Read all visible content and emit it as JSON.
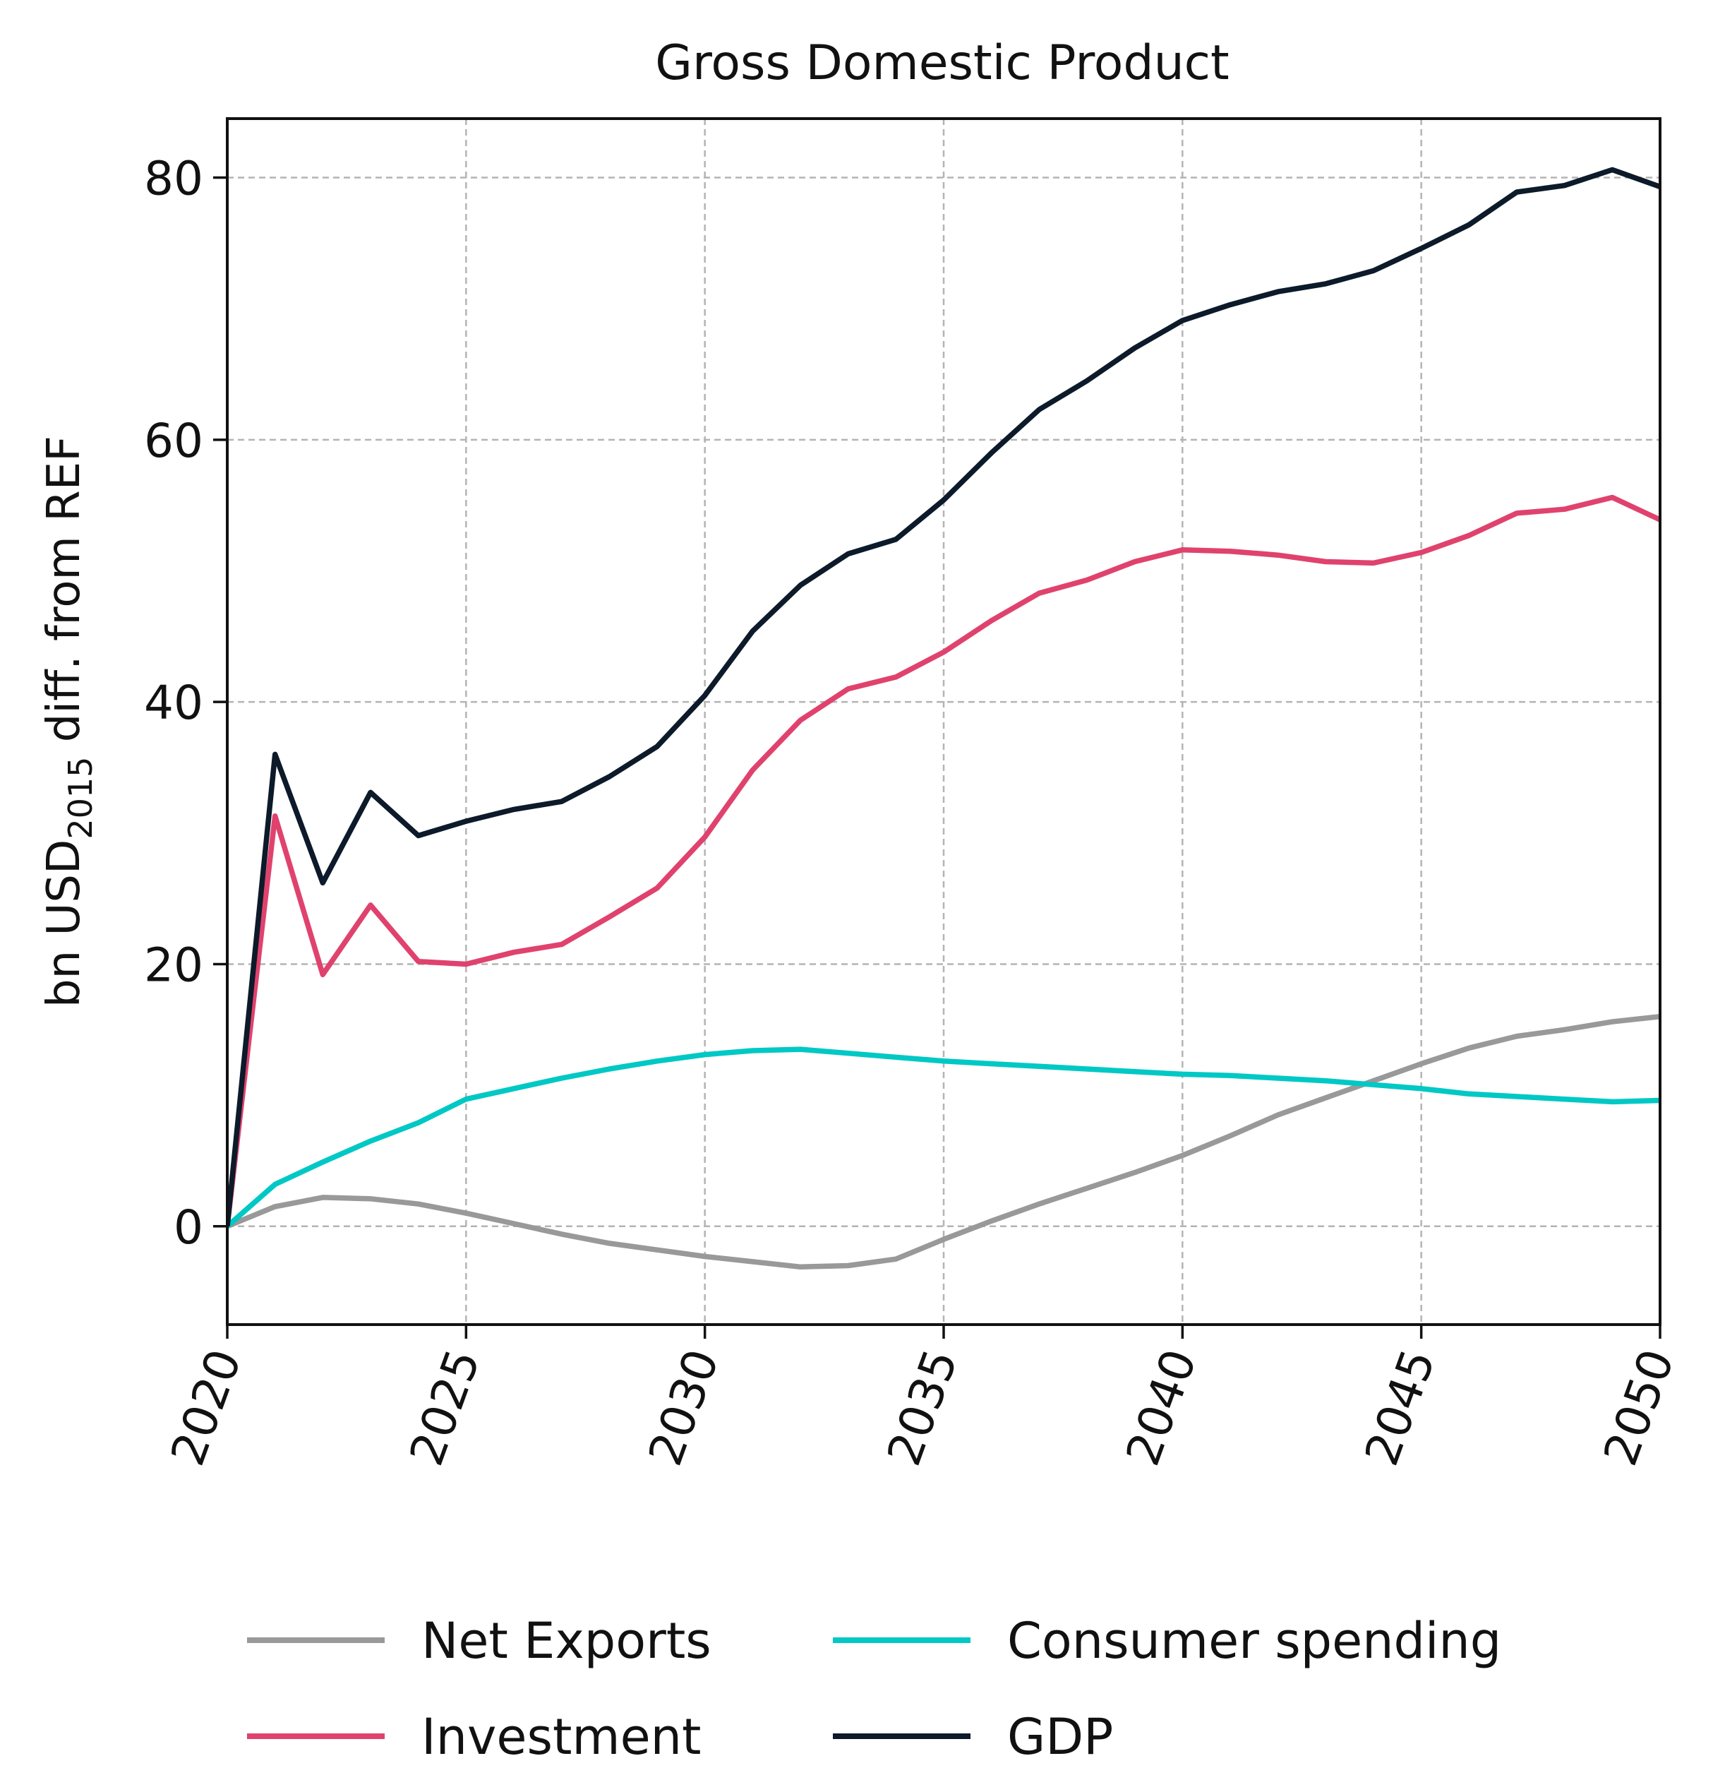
{
  "chart_data": {
    "type": "line",
    "title": "Gross Domestic Product",
    "ylabel_main": "bn USD",
    "ylabel_sub": "2015",
    "ylabel_tail": " diff. from REF",
    "xlabel": "",
    "xlim": [
      2020,
      2050
    ],
    "ylim": [
      -7.5,
      84.5
    ],
    "xticks": [
      2020,
      2025,
      2030,
      2035,
      2040,
      2045,
      2050
    ],
    "yticks": [
      0,
      20,
      40,
      60,
      80
    ],
    "grid": true,
    "legend_position": "bottom",
    "x": [
      2020,
      2021,
      2022,
      2023,
      2024,
      2025,
      2026,
      2027,
      2028,
      2029,
      2030,
      2031,
      2032,
      2033,
      2034,
      2035,
      2036,
      2037,
      2038,
      2039,
      2040,
      2041,
      2042,
      2043,
      2044,
      2045,
      2046,
      2047,
      2048,
      2049,
      2050
    ],
    "series": [
      {
        "name": "Net Exports",
        "color": "#999999",
        "values": [
          0,
          1.5,
          2.2,
          2.1,
          1.7,
          1.0,
          0.2,
          -0.6,
          -1.3,
          -1.8,
          -2.3,
          -2.7,
          -3.1,
          -3.0,
          -2.5,
          -1.0,
          0.4,
          1.7,
          2.9,
          4.1,
          5.4,
          6.9,
          8.5,
          9.8,
          11.1,
          12.4,
          13.6,
          14.5,
          15.0,
          15.6,
          16.0
        ]
      },
      {
        "name": "Investment",
        "color": "#e0426e",
        "values": [
          0,
          31.3,
          19.2,
          24.5,
          20.2,
          20.0,
          20.9,
          21.5,
          23.6,
          25.8,
          29.7,
          34.8,
          38.6,
          41.0,
          41.9,
          43.8,
          46.2,
          48.3,
          49.3,
          50.7,
          51.6,
          51.5,
          51.2,
          50.7,
          50.6,
          51.4,
          52.7,
          54.4,
          54.7,
          55.6,
          53.9
        ]
      },
      {
        "name": "Consumer spending",
        "color": "#00c8c4",
        "values": [
          0,
          3.2,
          4.9,
          6.5,
          7.9,
          9.7,
          10.5,
          11.3,
          12.0,
          12.6,
          13.1,
          13.4,
          13.5,
          13.2,
          12.9,
          12.6,
          12.4,
          12.2,
          12.0,
          11.8,
          11.6,
          11.5,
          11.3,
          11.1,
          10.8,
          10.5,
          10.1,
          9.9,
          9.7,
          9.5,
          9.6
        ]
      },
      {
        "name": "GDP",
        "color": "#0c1a2a",
        "values": [
          0,
          36.0,
          26.2,
          33.1,
          29.8,
          30.9,
          31.8,
          32.4,
          34.3,
          36.6,
          40.5,
          45.4,
          48.9,
          51.3,
          52.4,
          55.4,
          59.0,
          62.3,
          64.5,
          67.0,
          69.1,
          70.3,
          71.3,
          71.9,
          72.9,
          74.6,
          76.4,
          78.9,
          79.4,
          80.6,
          79.3
        ]
      }
    ]
  }
}
